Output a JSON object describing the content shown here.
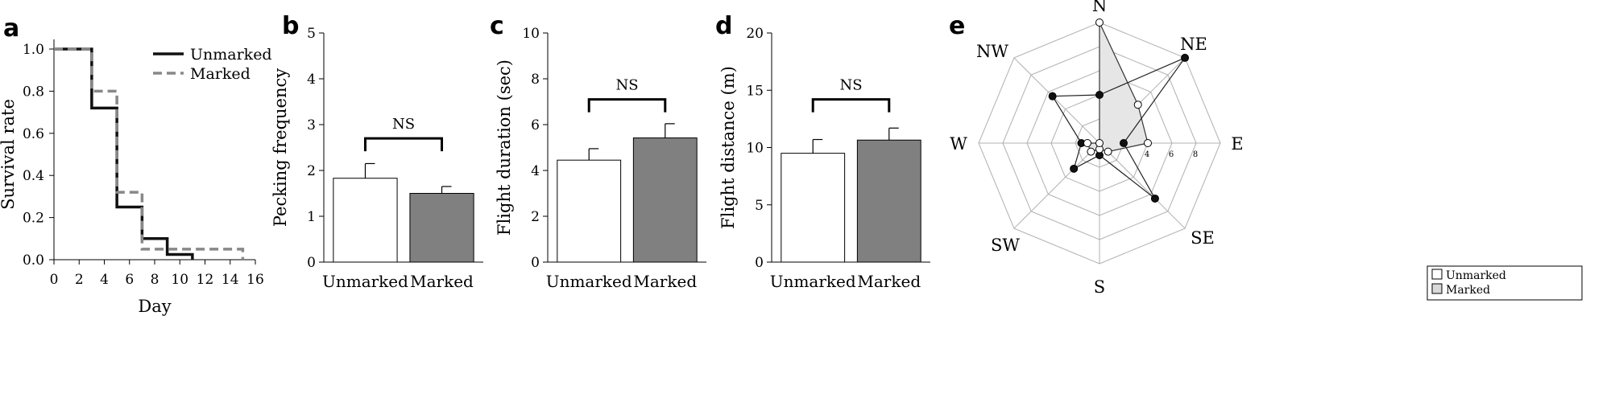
{
  "chart_data": [
    {
      "panel": "a",
      "type": "line",
      "step": true,
      "xlabel": "Day",
      "ylabel": "Survival rate",
      "xlim": [
        0,
        16
      ],
      "ylim": [
        0,
        1.0
      ],
      "xticks": [
        "0",
        "2",
        "4",
        "6",
        "8",
        "10",
        "12",
        "14",
        "16"
      ],
      "yticks": [
        "0.0",
        "0.2",
        "0.4",
        "0.6",
        "0.8",
        "1.0"
      ],
      "legend_position": "top-right",
      "series": [
        {
          "name": "Unmarked",
          "color": "#111111",
          "style": "solid",
          "x": [
            0,
            3,
            3,
            5,
            5,
            7,
            7,
            9,
            9,
            11,
            11
          ],
          "y": [
            1.0,
            1.0,
            0.72,
            0.72,
            0.25,
            0.25,
            0.1,
            0.1,
            0.025,
            0.025,
            0.0
          ]
        },
        {
          "name": "Marked",
          "color": "#888888",
          "style": "dashed",
          "x": [
            0,
            3,
            3,
            5,
            5,
            7,
            7,
            9,
            9,
            15,
            15
          ],
          "y": [
            1.0,
            1.0,
            0.8,
            0.8,
            0.32,
            0.32,
            0.05,
            0.05,
            0.05,
            0.05,
            0.0
          ]
        }
      ]
    },
    {
      "panel": "b",
      "type": "bar",
      "categories": [
        "Unmarked",
        "Marked"
      ],
      "values": [
        1.83,
        1.5
      ],
      "errors": [
        0.32,
        0.15
      ],
      "colors": [
        "#ffffff",
        "#808080"
      ],
      "ylabel": "Pecking frequency",
      "ylim": [
        0,
        5
      ],
      "yticks": [
        "0",
        "1",
        "2",
        "3",
        "4",
        "5"
      ],
      "annotation": "NS",
      "bracket_y": 2.7
    },
    {
      "panel": "c",
      "type": "bar",
      "categories": [
        "Unmarked",
        "Marked"
      ],
      "values": [
        4.45,
        5.42
      ],
      "errors": [
        0.5,
        0.62
      ],
      "colors": [
        "#ffffff",
        "#808080"
      ],
      "ylabel": "Flight duration (sec)",
      "ylim": [
        0,
        10
      ],
      "yticks": [
        "0",
        "2",
        "4",
        "6",
        "8",
        "10"
      ],
      "annotation": "NS",
      "bracket_y": 7.1
    },
    {
      "panel": "d",
      "type": "bar",
      "categories": [
        "Unmarked",
        "Marked"
      ],
      "values": [
        9.5,
        10.65
      ],
      "errors": [
        1.2,
        1.05
      ],
      "colors": [
        "#ffffff",
        "#808080"
      ],
      "ylabel": "Flight distance (m)",
      "ylim": [
        0,
        20
      ],
      "yticks": [
        "0",
        "5",
        "10",
        "15",
        "20"
      ],
      "annotation": "NS",
      "bracket_y": 14.2
    },
    {
      "panel": "e",
      "type": "radar",
      "directions": [
        "N",
        "NE",
        "E",
        "SE",
        "S",
        "SW",
        "W",
        "NW"
      ],
      "rmax": 10,
      "ring_labels": [
        "4",
        "6",
        "8"
      ],
      "legend_position": "bottom-right",
      "series": [
        {
          "name": "Unmarked",
          "fill": "#e6e6e6",
          "marker": "#ffffff",
          "values": [
            10,
            4.5,
            4.0,
            1.0,
            0.5,
            1.0,
            1.0,
            0.0
          ]
        },
        {
          "name": "Marked",
          "fill": "none",
          "marker": "#111111",
          "values": [
            4,
            10,
            2.0,
            6.5,
            1.0,
            3.0,
            1.5,
            5.5
          ]
        }
      ]
    }
  ]
}
